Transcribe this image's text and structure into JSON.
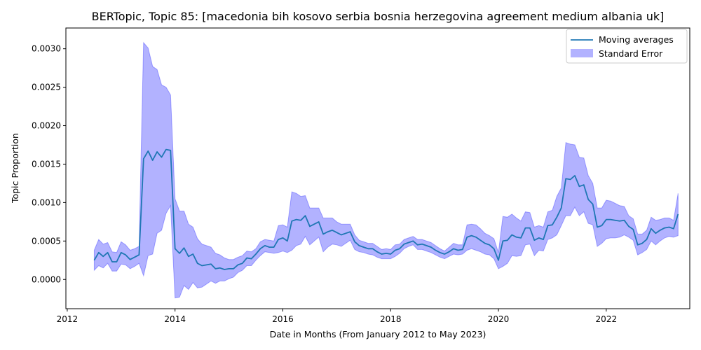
{
  "chart_data": {
    "type": "line",
    "title": "BERTopic, Topic 85: [macedonia bih kosovo serbia bosnia herzegovina agreement medium albania uk]",
    "xlabel": "Date in Months (From January 2012 to May 2023)",
    "ylabel": "Topic Proportion",
    "xlim": [
      2011.975,
      2023.55
    ],
    "ylim": [
      -0.00038,
      0.00327
    ],
    "x_ticks": [
      "2012",
      "2014",
      "2016",
      "2018",
      "2020",
      "2022"
    ],
    "y_ticks": [
      "0.0000",
      "0.0005",
      "0.0010",
      "0.0015",
      "0.0020",
      "0.0025",
      "0.0030"
    ],
    "legend_position": "upper right",
    "series": [
      {
        "name": "Moving averages",
        "color": "#1f77b4",
        "x": [
          "2012-07",
          "2012-08",
          "2012-09",
          "2012-10",
          "2012-11",
          "2012-12",
          "2013-01",
          "2013-02",
          "2013-03",
          "2013-04",
          "2013-05",
          "2013-06",
          "2013-07",
          "2013-08",
          "2013-09",
          "2013-10",
          "2013-11",
          "2013-12",
          "2014-01",
          "2014-02",
          "2014-03",
          "2014-04",
          "2014-05",
          "2014-06",
          "2014-07",
          "2014-08",
          "2014-09",
          "2014-10",
          "2014-11",
          "2014-12",
          "2015-01",
          "2015-02",
          "2015-03",
          "2015-04",
          "2015-05",
          "2015-06",
          "2015-07",
          "2015-08",
          "2015-09",
          "2015-10",
          "2015-11",
          "2015-12",
          "2016-01",
          "2016-02",
          "2016-03",
          "2016-04",
          "2016-05",
          "2016-06",
          "2016-07",
          "2016-08",
          "2016-09",
          "2016-10",
          "2016-11",
          "2016-12",
          "2017-01",
          "2017-02",
          "2017-03",
          "2017-04",
          "2017-05",
          "2017-06",
          "2017-07",
          "2017-08",
          "2017-09",
          "2017-10",
          "2017-11",
          "2017-12",
          "2018-01",
          "2018-02",
          "2018-03",
          "2018-04",
          "2018-05",
          "2018-06",
          "2018-07",
          "2018-08",
          "2018-09",
          "2018-10",
          "2018-11",
          "2018-12",
          "2019-01",
          "2019-02",
          "2019-03",
          "2019-04",
          "2019-05",
          "2019-06",
          "2019-07",
          "2019-08",
          "2019-09",
          "2019-10",
          "2019-11",
          "2019-12",
          "2020-01",
          "2020-02",
          "2020-03",
          "2020-04",
          "2020-05",
          "2020-06",
          "2020-07",
          "2020-08",
          "2020-09",
          "2020-10",
          "2020-11",
          "2020-12",
          "2021-01",
          "2021-02",
          "2021-03",
          "2021-04",
          "2021-05",
          "2021-06",
          "2021-07",
          "2021-08",
          "2021-09",
          "2021-10",
          "2021-11",
          "2021-12",
          "2022-01",
          "2022-02",
          "2022-03",
          "2022-04",
          "2022-05",
          "2022-06",
          "2022-07",
          "2022-08",
          "2022-09",
          "2022-10",
          "2022-11",
          "2022-12",
          "2023-01",
          "2023-02",
          "2023-03",
          "2023-04",
          "2023-05"
        ],
        "values": [
          0.00025,
          0.00035,
          0.0003,
          0.00035,
          0.00023,
          0.00023,
          0.00035,
          0.00032,
          0.00026,
          0.00029,
          0.00032,
          0.00157,
          0.00167,
          0.00155,
          0.00166,
          0.00159,
          0.00169,
          0.00168,
          0.0004,
          0.00034,
          0.00041,
          0.0003,
          0.00033,
          0.00021,
          0.00018,
          0.00019,
          0.0002,
          0.00014,
          0.00015,
          0.00013,
          0.00014,
          0.00014,
          0.00019,
          0.00021,
          0.00028,
          0.00027,
          0.00033,
          0.0004,
          0.00044,
          0.00042,
          0.00042,
          0.00052,
          0.00054,
          0.0005,
          0.00076,
          0.00078,
          0.00077,
          0.00083,
          0.00069,
          0.00072,
          0.00075,
          0.00059,
          0.00062,
          0.00064,
          0.00061,
          0.00058,
          0.0006,
          0.00062,
          0.00049,
          0.00044,
          0.00042,
          0.0004,
          0.0004,
          0.00036,
          0.00033,
          0.00034,
          0.00033,
          0.00038,
          0.0004,
          0.00046,
          0.00048,
          0.0005,
          0.00045,
          0.00046,
          0.00044,
          0.00042,
          0.00038,
          0.00035,
          0.00033,
          0.00036,
          0.0004,
          0.00038,
          0.00039,
          0.00055,
          0.00057,
          0.00055,
          0.00051,
          0.00047,
          0.00045,
          0.0004,
          0.00025,
          0.0005,
          0.00051,
          0.00058,
          0.00055,
          0.00054,
          0.00067,
          0.00067,
          0.00051,
          0.00054,
          0.00052,
          0.0007,
          0.00071,
          0.00081,
          0.00093,
          0.00131,
          0.0013,
          0.00135,
          0.00121,
          0.00123,
          0.00104,
          0.00098,
          0.00068,
          0.0007,
          0.00078,
          0.00078,
          0.00077,
          0.00076,
          0.00077,
          0.00069,
          0.00065,
          0.00045,
          0.00047,
          0.00052,
          0.00066,
          0.0006,
          0.00064,
          0.00067,
          0.00068,
          0.00066,
          0.00085
        ]
      },
      {
        "name": "Standard Error",
        "color": "#0000ff",
        "upper": [
          0.00038,
          0.00052,
          0.00046,
          0.00048,
          0.00036,
          0.00035,
          0.00049,
          0.00045,
          0.00038,
          0.0004,
          0.00043,
          0.00308,
          0.00301,
          0.00277,
          0.00273,
          0.00253,
          0.0025,
          0.0024,
          0.00105,
          0.00089,
          0.00089,
          0.00072,
          0.00068,
          0.00053,
          0.00046,
          0.00044,
          0.00042,
          0.00034,
          0.00032,
          0.00028,
          0.00026,
          0.00026,
          0.00029,
          0.00031,
          0.00037,
          0.00036,
          0.0004,
          0.00049,
          0.00052,
          0.00051,
          0.0005,
          0.0007,
          0.00071,
          0.00068,
          0.00114,
          0.00112,
          0.00108,
          0.00109,
          0.00093,
          0.00093,
          0.00093,
          0.0008,
          0.0008,
          0.0008,
          0.00075,
          0.00072,
          0.00072,
          0.00072,
          0.00058,
          0.00051,
          0.00049,
          0.00047,
          0.00047,
          0.00043,
          0.00039,
          0.0004,
          0.00039,
          0.00045,
          0.00046,
          0.00052,
          0.00054,
          0.00056,
          0.00052,
          0.00052,
          0.0005,
          0.00048,
          0.00044,
          0.0004,
          0.00037,
          0.00042,
          0.00047,
          0.00045,
          0.00045,
          0.00071,
          0.00072,
          0.00071,
          0.00066,
          0.0006,
          0.00057,
          0.00053,
          0.00035,
          0.00082,
          0.00081,
          0.00085,
          0.0008,
          0.00076,
          0.00088,
          0.00087,
          0.00068,
          0.0007,
          0.00068,
          0.00088,
          0.0009,
          0.00108,
          0.00119,
          0.00178,
          0.00176,
          0.00175,
          0.00159,
          0.00158,
          0.00135,
          0.00125,
          0.00093,
          0.00093,
          0.00103,
          0.00102,
          0.00099,
          0.00096,
          0.00095,
          0.00083,
          0.00079,
          0.00059,
          0.00059,
          0.00064,
          0.00081,
          0.00077,
          0.00078,
          0.0008,
          0.0008,
          0.00077,
          0.00112
        ],
        "lower": [
          0.00012,
          0.00018,
          0.00015,
          0.00021,
          0.00011,
          0.00011,
          0.0002,
          0.00019,
          0.00014,
          0.00017,
          0.00021,
          5e-05,
          0.00031,
          0.00033,
          0.0006,
          0.00064,
          0.00086,
          0.00096,
          -0.00024,
          -0.00023,
          -8e-05,
          -0.00013,
          -4e-05,
          -0.00011,
          -0.0001,
          -6e-05,
          -2e-05,
          -5e-05,
          -2e-05,
          -2e-05,
          1e-05,
          3e-05,
          9e-05,
          0.00012,
          0.00018,
          0.00018,
          0.00025,
          0.00031,
          0.00036,
          0.00035,
          0.00034,
          0.00035,
          0.00037,
          0.00035,
          0.00038,
          0.00044,
          0.00046,
          0.00056,
          0.00045,
          0.0005,
          0.00055,
          0.00036,
          0.00042,
          0.00046,
          0.00045,
          0.00043,
          0.00047,
          0.00051,
          0.00039,
          0.00036,
          0.00035,
          0.00033,
          0.00032,
          0.00029,
          0.00027,
          0.00027,
          0.00027,
          0.0003,
          0.00034,
          0.0004,
          0.00043,
          0.00045,
          0.00039,
          0.00039,
          0.00037,
          0.00035,
          0.00032,
          0.00029,
          0.00027,
          0.0003,
          0.00033,
          0.00032,
          0.00033,
          0.00038,
          0.0004,
          0.00038,
          0.00036,
          0.00033,
          0.00032,
          0.00027,
          0.00014,
          0.00017,
          0.00021,
          0.00031,
          0.0003,
          0.00031,
          0.00045,
          0.00046,
          0.00031,
          0.00038,
          0.00037,
          0.00052,
          0.00054,
          0.00058,
          0.0007,
          0.00083,
          0.00083,
          0.00094,
          0.00083,
          0.00088,
          0.00073,
          0.00071,
          0.00043,
          0.00047,
          0.00053,
          0.00054,
          0.00054,
          0.00055,
          0.00058,
          0.00055,
          0.00051,
          0.00032,
          0.00035,
          0.00039,
          0.0005,
          0.00045,
          0.0005,
          0.00054,
          0.00056,
          0.00055,
          0.00057
        ]
      }
    ]
  }
}
